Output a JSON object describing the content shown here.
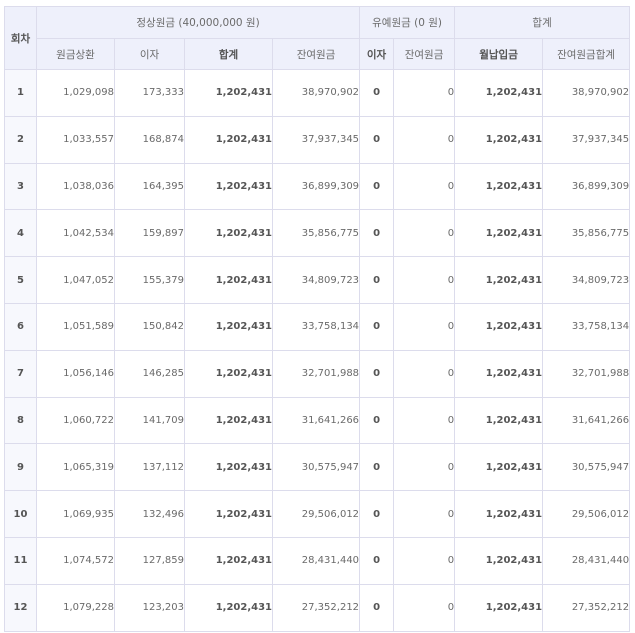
{
  "header": {
    "index_label": "회차",
    "group_regular": "정상원금 (40,000,000 원)",
    "group_grace": "유예원금 (0 원)",
    "group_total": "합계",
    "cols": [
      "원금상환",
      "이자",
      "합계",
      "잔여원금",
      "이자",
      "잔여원금",
      "월납입금",
      "잔여원금합계"
    ]
  },
  "rows": [
    {
      "n": "1",
      "principal": "1,029,098",
      "interest": "173,333",
      "sum": "1,202,431",
      "remain": "38,970,902",
      "g_interest": "0",
      "g_remain": "0",
      "monthly": "1,202,431",
      "total_remain": "38,970,902"
    },
    {
      "n": "2",
      "principal": "1,033,557",
      "interest": "168,874",
      "sum": "1,202,431",
      "remain": "37,937,345",
      "g_interest": "0",
      "g_remain": "0",
      "monthly": "1,202,431",
      "total_remain": "37,937,345"
    },
    {
      "n": "3",
      "principal": "1,038,036",
      "interest": "164,395",
      "sum": "1,202,431",
      "remain": "36,899,309",
      "g_interest": "0",
      "g_remain": "0",
      "monthly": "1,202,431",
      "total_remain": "36,899,309"
    },
    {
      "n": "4",
      "principal": "1,042,534",
      "interest": "159,897",
      "sum": "1,202,431",
      "remain": "35,856,775",
      "g_interest": "0",
      "g_remain": "0",
      "monthly": "1,202,431",
      "total_remain": "35,856,775"
    },
    {
      "n": "5",
      "principal": "1,047,052",
      "interest": "155,379",
      "sum": "1,202,431",
      "remain": "34,809,723",
      "g_interest": "0",
      "g_remain": "0",
      "monthly": "1,202,431",
      "total_remain": "34,809,723"
    },
    {
      "n": "6",
      "principal": "1,051,589",
      "interest": "150,842",
      "sum": "1,202,431",
      "remain": "33,758,134",
      "g_interest": "0",
      "g_remain": "0",
      "monthly": "1,202,431",
      "total_remain": "33,758,134"
    },
    {
      "n": "7",
      "principal": "1,056,146",
      "interest": "146,285",
      "sum": "1,202,431",
      "remain": "32,701,988",
      "g_interest": "0",
      "g_remain": "0",
      "monthly": "1,202,431",
      "total_remain": "32,701,988"
    },
    {
      "n": "8",
      "principal": "1,060,722",
      "interest": "141,709",
      "sum": "1,202,431",
      "remain": "31,641,266",
      "g_interest": "0",
      "g_remain": "0",
      "monthly": "1,202,431",
      "total_remain": "31,641,266"
    },
    {
      "n": "9",
      "principal": "1,065,319",
      "interest": "137,112",
      "sum": "1,202,431",
      "remain": "30,575,947",
      "g_interest": "0",
      "g_remain": "0",
      "monthly": "1,202,431",
      "total_remain": "30,575,947"
    },
    {
      "n": "10",
      "principal": "1,069,935",
      "interest": "132,496",
      "sum": "1,202,431",
      "remain": "29,506,012",
      "g_interest": "0",
      "g_remain": "0",
      "monthly": "1,202,431",
      "total_remain": "29,506,012"
    },
    {
      "n": "11",
      "principal": "1,074,572",
      "interest": "127,859",
      "sum": "1,202,431",
      "remain": "28,431,440",
      "g_interest": "0",
      "g_remain": "0",
      "monthly": "1,202,431",
      "total_remain": "28,431,440"
    },
    {
      "n": "12",
      "principal": "1,079,228",
      "interest": "123,203",
      "sum": "1,202,431",
      "remain": "27,352,212",
      "g_interest": "0",
      "g_remain": "0",
      "monthly": "1,202,431",
      "total_remain": "27,352,212"
    }
  ]
}
